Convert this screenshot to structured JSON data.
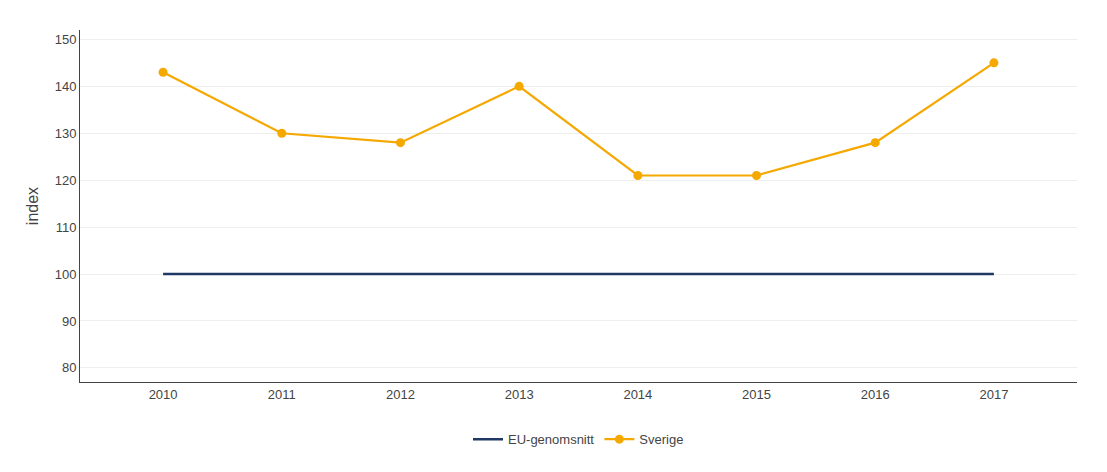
{
  "chart_data": {
    "type": "line",
    "ylabel": "index",
    "x": [
      2010,
      2011,
      2012,
      2013,
      2014,
      2015,
      2016,
      2017
    ],
    "series": [
      {
        "name": "EU-genomsnitt",
        "color": "#1f3864",
        "marker": "none",
        "values": [
          100,
          100,
          100,
          100,
          100,
          100,
          100,
          100
        ]
      },
      {
        "name": "Sverige",
        "color": "#f5a800",
        "marker": "circle",
        "values": [
          143,
          130,
          128,
          140,
          121,
          121,
          128,
          145
        ]
      }
    ],
    "xlim": [
      2009.3,
      2017.7
    ],
    "xticks": [
      2010,
      2011,
      2012,
      2013,
      2014,
      2015,
      2016,
      2017
    ],
    "ylim": [
      77,
      152
    ],
    "yticks": [
      80,
      90,
      100,
      110,
      120,
      130,
      140,
      150
    ],
    "grid": "y",
    "legend": "bottom"
  }
}
